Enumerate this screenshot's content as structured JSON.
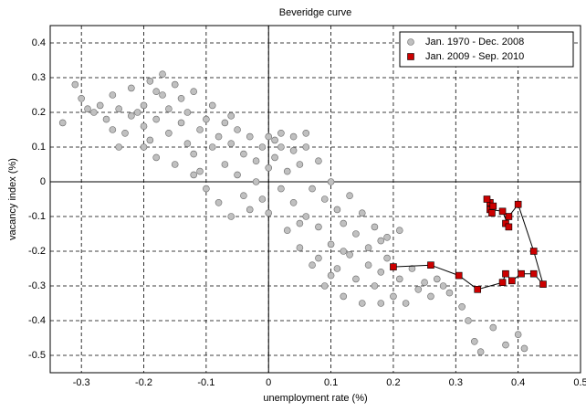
{
  "chart_data": {
    "type": "scatter",
    "title": "Beveridge curve",
    "x_label": "unemployment rate (%)",
    "y_label": "vacancy index (%)",
    "xlim": [
      -0.35,
      0.5
    ],
    "ylim": [
      -0.55,
      0.45
    ],
    "xticks": [
      -0.3,
      -0.2,
      -0.1,
      0,
      0.1,
      0.2,
      0.3,
      0.4,
      0.5
    ],
    "yticks": [
      0.4,
      0.3,
      0.2,
      0.1,
      0,
      -0.1,
      -0.2,
      -0.3,
      -0.4,
      -0.5
    ],
    "grid": true,
    "legend": "upper-right",
    "series": [
      {
        "name": "Jan. 1970 - Dec. 2008",
        "color": "#c0c0c0",
        "marker": "circle",
        "x": [
          -0.33,
          -0.31,
          -0.3,
          -0.29,
          -0.28,
          -0.27,
          -0.26,
          -0.25,
          -0.25,
          -0.24,
          -0.23,
          -0.22,
          -0.22,
          -0.21,
          -0.2,
          -0.2,
          -0.19,
          -0.19,
          -0.18,
          -0.18,
          -0.17,
          -0.17,
          -0.16,
          -0.16,
          -0.15,
          -0.15,
          -0.14,
          -0.14,
          -0.13,
          -0.13,
          -0.12,
          -0.12,
          -0.11,
          -0.11,
          -0.1,
          -0.1,
          -0.09,
          -0.09,
          -0.08,
          -0.08,
          -0.07,
          -0.07,
          -0.06,
          -0.06,
          -0.05,
          -0.05,
          -0.04,
          -0.04,
          -0.03,
          -0.03,
          -0.02,
          -0.02,
          -0.01,
          -0.01,
          0,
          0,
          0.01,
          0.01,
          0.02,
          0.02,
          0.03,
          0.03,
          0.04,
          0.04,
          0.05,
          0.05,
          0.06,
          0.06,
          0.07,
          0.07,
          0.08,
          0.08,
          0.09,
          0.09,
          0.1,
          0.1,
          0.11,
          0.11,
          0.12,
          0.12,
          0.13,
          0.13,
          0.14,
          0.14,
          0.15,
          0.15,
          0.16,
          0.16,
          0.17,
          0.17,
          0.18,
          0.18,
          0.19,
          0.2,
          0.21,
          0.22,
          0.23,
          0.24,
          0.25,
          0.26,
          0.27,
          0.28,
          0.29,
          0.31,
          0.32,
          0.33,
          0.34,
          0.36,
          0.38,
          0.4,
          0.41,
          0.02,
          -0.2,
          -0.24,
          0.04,
          0.06,
          -0.12,
          0,
          0.08,
          0.1,
          0.19,
          -0.18,
          -0.06,
          0.05,
          0.12,
          0.21,
          0.18
        ],
        "y": [
          0.17,
          0.28,
          0.24,
          0.21,
          0.2,
          0.22,
          0.18,
          0.15,
          0.25,
          0.21,
          0.14,
          0.19,
          0.27,
          0.2,
          0.16,
          0.22,
          0.12,
          0.29,
          0.18,
          0.07,
          0.25,
          0.31,
          0.14,
          0.21,
          0.28,
          0.05,
          0.17,
          0.24,
          0.11,
          0.2,
          0.08,
          0.26,
          0.15,
          0.03,
          0.18,
          -0.02,
          0.22,
          0.1,
          0.13,
          -0.06,
          0.05,
          0.17,
          0.11,
          -0.1,
          0.02,
          0.15,
          0.08,
          -0.04,
          0.13,
          -0.08,
          0.06,
          0,
          0.1,
          -0.05,
          0.04,
          -0.09,
          0.12,
          0.07,
          -0.02,
          0.1,
          0.03,
          -0.14,
          0.09,
          -0.06,
          0.05,
          -0.19,
          0.1,
          -0.1,
          -0.02,
          -0.24,
          0.06,
          -0.13,
          -0.05,
          -0.3,
          0,
          -0.18,
          -0.08,
          -0.25,
          -0.12,
          -0.33,
          -0.04,
          -0.21,
          -0.15,
          -0.28,
          -0.09,
          -0.35,
          -0.19,
          -0.24,
          -0.13,
          -0.3,
          -0.17,
          -0.26,
          -0.22,
          -0.33,
          -0.28,
          -0.35,
          -0.25,
          -0.31,
          -0.29,
          -0.33,
          -0.28,
          -0.3,
          -0.32,
          -0.36,
          -0.4,
          -0.46,
          -0.49,
          -0.42,
          -0.47,
          -0.44,
          -0.48,
          0.14,
          0.1,
          0.1,
          0.13,
          0.14,
          0.02,
          0.13,
          -0.22,
          -0.27,
          -0.16,
          0.26,
          0.19,
          -0.12,
          -0.2,
          -0.14,
          -0.35
        ]
      },
      {
        "name": "Jan. 2009 - Sep. 2010",
        "color": "#cc0000",
        "marker": "square",
        "line": true,
        "x": [
          0.2,
          0.26,
          0.305,
          0.335,
          0.375,
          0.38,
          0.39,
          0.405,
          0.425,
          0.44,
          0.425,
          0.4,
          0.385,
          0.38,
          0.385,
          0.375,
          0.355,
          0.358,
          0.355,
          0.35,
          0.36
        ],
        "y": [
          -0.245,
          -0.24,
          -0.27,
          -0.31,
          -0.29,
          -0.265,
          -0.285,
          -0.265,
          -0.265,
          -0.295,
          -0.2,
          -0.065,
          -0.1,
          -0.12,
          -0.13,
          -0.085,
          -0.08,
          -0.09,
          -0.06,
          -0.05,
          -0.07
        ]
      }
    ]
  }
}
